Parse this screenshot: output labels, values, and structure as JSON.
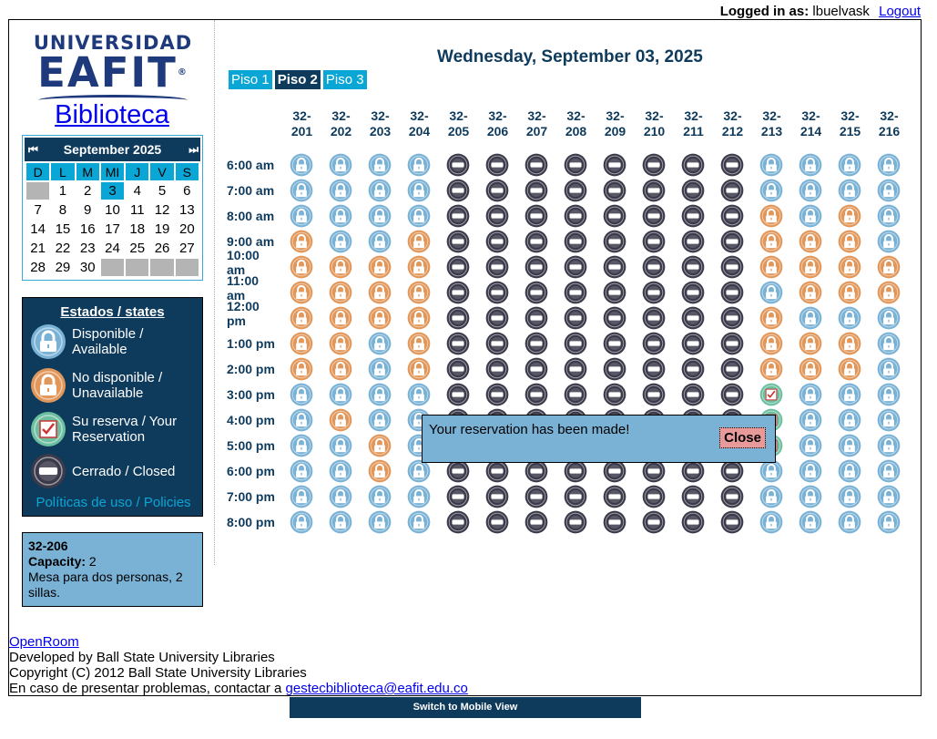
{
  "topbar": {
    "logged_label": "Logged in as",
    "username": "lbuelvask",
    "logout": "Logout"
  },
  "logo": {
    "line1": "UNIVERSIDAD",
    "line2": "EAFIT",
    "reg": "®"
  },
  "site_title": "Biblioteca",
  "calendar": {
    "prev": "⏮",
    "next": "⏭",
    "month": "September 2025",
    "weekdays": [
      "D",
      "L",
      "M",
      "MI",
      "J",
      "V",
      "S"
    ],
    "weeks": [
      [
        "",
        "1",
        "2",
        "3",
        "4",
        "5",
        "6"
      ],
      [
        "7",
        "8",
        "9",
        "10",
        "11",
        "12",
        "13"
      ],
      [
        "14",
        "15",
        "16",
        "17",
        "18",
        "19",
        "20"
      ],
      [
        "21",
        "22",
        "23",
        "24",
        "25",
        "26",
        "27"
      ],
      [
        "28",
        "29",
        "30",
        "",
        "",
        "",
        ""
      ]
    ],
    "selected": "3"
  },
  "legend": {
    "title": "Estados / states",
    "available": "Disponible / Available",
    "unavailable": "No disponible / Unavailable",
    "reserved": "Su reserva / Your Reservation",
    "closed": "Cerrado / Closed",
    "policies": "Políticas de uso / Policies"
  },
  "room_info": {
    "name": "32-206",
    "capacity_label": "Capacity:",
    "capacity": "2",
    "description": "Mesa para dos personas, 2 sillas."
  },
  "date_title": "Wednesday, September 03, 2025",
  "tabs": [
    "Piso 1",
    "Piso 2",
    "Piso 3"
  ],
  "active_tab": "Piso 2",
  "rooms": [
    "32-201",
    "32-202",
    "32-203",
    "32-204",
    "32-205",
    "32-206",
    "32-207",
    "32-208",
    "32-209",
    "32-210",
    "32-211",
    "32-212",
    "32-213",
    "32-214",
    "32-215",
    "32-216"
  ],
  "times": [
    "6:00 am",
    "7:00 am",
    "8:00 am",
    "9:00 am",
    "10:00 am",
    "11:00 am",
    "12:00 pm",
    "1:00 pm",
    "2:00 pm",
    "3:00 pm",
    "4:00 pm",
    "5:00 pm",
    "6:00 pm",
    "7:00 pm",
    "8:00 pm"
  ],
  "status_key": {
    "A": "available",
    "U": "unavailable",
    "R": "your reservation",
    "C": "closed"
  },
  "grid": [
    "AAAACCCCCCCCAAAA",
    "AAAACCCCCCCCAAAA",
    "AAAACCCCCCCCUAUA",
    "UAAUCCCCCCCCUUUA",
    "UUUUCCCCCCCCUUUU",
    "UUUUCCCCCCCCAUUU",
    "UUUUCCCCCCCCUAAA",
    "UUAUCCCCCCCCUUUA",
    "UUAUCCCCCCCCUUUA",
    "AAAACCCCCCCCRAAA",
    "AUAACCCCCCCCRAAA",
    "AAUACCCCCCCCRAAA",
    "AAUACCCCCCCCAAAA",
    "AAAACCCCCCCCAAAA",
    "AAAACCCCCCCCAAAA"
  ],
  "colors": {
    "available": "#7ab2d6",
    "unavailable": "#e2975a",
    "reserved": "#6cbfa0",
    "closed": "#3a3a4a",
    "accent": "#0aa6d6",
    "navy": "#0e3a5c"
  },
  "modal": {
    "message": "Your reservation has been made!",
    "close": "Close"
  },
  "footer": {
    "openroom": "OpenRoom",
    "developed": "Developed by Ball State University Libraries",
    "copyright": "Copyright (C) 2012 Ball State University Libraries",
    "contact_text": "En caso de presentar problemas, contactar a",
    "contact_email": "gestecbiblioteca@eafit.edu.co"
  },
  "mobile_button": "Switch to Mobile View"
}
